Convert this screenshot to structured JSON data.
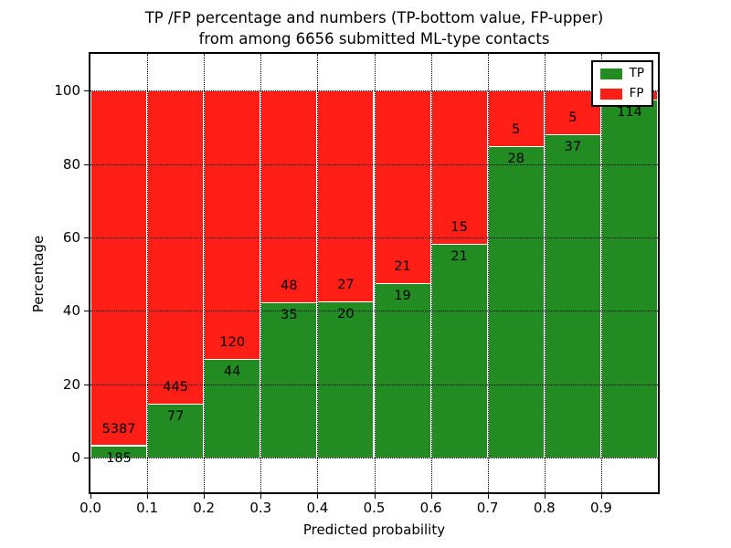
{
  "title": {
    "line1": "TP /FP percentage and numbers (TP-bottom value, FP-upper)",
    "line2": "from among 6656 submitted ML-type contacts"
  },
  "axes": {
    "xlabel": "Predicted probability",
    "ylabel": "Percentage",
    "x_tick_labels": [
      "0.0",
      "0.1",
      "0.2",
      "0.3",
      "0.4",
      "0.5",
      "0.6",
      "0.7",
      "0.8",
      "0.9"
    ],
    "y_tick_labels": [
      "0",
      "20",
      "40",
      "60",
      "80",
      "100"
    ],
    "y_tick_values": [
      0,
      20,
      40,
      60,
      80,
      100
    ]
  },
  "legend": {
    "items": [
      {
        "label": "TP",
        "color": "#228b22"
      },
      {
        "label": "FP",
        "color": "#ff1f17"
      }
    ]
  },
  "colors": {
    "tp": "#228b22",
    "fp": "#ff1f17",
    "bar_edge": "#ffffff",
    "grid": "#000000"
  },
  "chart_data": {
    "type": "bar",
    "stacked": true,
    "normalized_to": 100,
    "title": "TP /FP percentage and numbers (TP-bottom value, FP-upper) from among 6656 submitted ML-type contacts",
    "xlabel": "Predicted probability",
    "ylabel": "Percentage",
    "xlim": [
      0,
      1
    ],
    "ylim": [
      -9.5,
      110
    ],
    "grid": true,
    "legend_position": "upper right",
    "total_contacts": 6656,
    "categories": [
      "0.0-0.1",
      "0.1-0.2",
      "0.2-0.3",
      "0.3-0.4",
      "0.4-0.5",
      "0.5-0.6",
      "0.6-0.7",
      "0.7-0.8",
      "0.8-0.9",
      "0.9-1.0"
    ],
    "series": [
      {
        "name": "TP",
        "values": [
          185,
          77,
          44,
          35,
          20,
          19,
          21,
          28,
          37,
          114
        ]
      },
      {
        "name": "FP",
        "values": [
          5387,
          445,
          120,
          48,
          27,
          21,
          15,
          5,
          5,
          3
        ]
      }
    ],
    "bins": [
      {
        "range": "0.0-0.1",
        "tp": 185,
        "fp": 5387,
        "tp_label": "185",
        "fp_label": "5387"
      },
      {
        "range": "0.1-0.2",
        "tp": 77,
        "fp": 445,
        "tp_label": "77",
        "fp_label": "445"
      },
      {
        "range": "0.2-0.3",
        "tp": 44,
        "fp": 120,
        "tp_label": "44",
        "fp_label": "120"
      },
      {
        "range": "0.3-0.4",
        "tp": 35,
        "fp": 48,
        "tp_label": "35",
        "fp_label": "48"
      },
      {
        "range": "0.4-0.5",
        "tp": 20,
        "fp": 27,
        "tp_label": "20",
        "fp_label": "27"
      },
      {
        "range": "0.5-0.6",
        "tp": 19,
        "fp": 21,
        "tp_label": "19",
        "fp_label": "21"
      },
      {
        "range": "0.6-0.7",
        "tp": 21,
        "fp": 15,
        "tp_label": "21",
        "fp_label": "15"
      },
      {
        "range": "0.7-0.8",
        "tp": 28,
        "fp": 5,
        "tp_label": "28",
        "fp_label": "5"
      },
      {
        "range": "0.8-0.9",
        "tp": 37,
        "fp": 5,
        "tp_label": "37",
        "fp_label": "5"
      },
      {
        "range": "0.9-1.0",
        "tp": 114,
        "fp": 3,
        "tp_label": "114",
        "fp_label": ""
      }
    ]
  }
}
